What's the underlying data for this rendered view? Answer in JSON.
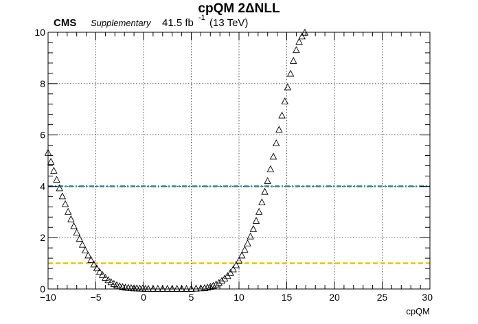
{
  "header": {
    "title": "cpQM 2ΔNLL",
    "experiment": "CMS",
    "status": "Supplementary",
    "lumi_value": "41.5 fb",
    "lumi_exponent": "-1",
    "energy": "(13 TeV)"
  },
  "chart_data": {
    "type": "scatter",
    "title": "cpQM 2ΔNLL",
    "xlabel": "cpQM",
    "ylabel": "",
    "xlim": [
      -10,
      30
    ],
    "ylim": [
      0,
      10
    ],
    "xticks": [
      -10,
      -5,
      0,
      5,
      10,
      15,
      20,
      25,
      30
    ],
    "yticks": [
      0,
      2,
      4,
      6,
      8,
      10
    ],
    "xtick_labels": [
      "−10",
      "−5",
      "0",
      "5",
      "10",
      "15",
      "20",
      "25",
      "30"
    ],
    "ytick_labels": [
      "0",
      "2",
      "4",
      "6",
      "8",
      "10"
    ],
    "grid": true,
    "marker": "open-triangle",
    "series": [
      {
        "x": [
          -10.0,
          -9.7,
          -9.4,
          -9.1,
          -8.8,
          -8.5,
          -8.2,
          -7.9,
          -7.6,
          -7.3,
          -7.0,
          -6.7,
          -6.4,
          -6.1,
          -5.8,
          -5.5,
          -5.2,
          -4.9,
          -4.6,
          -4.3,
          -4.0,
          -3.7,
          -3.4,
          -3.1,
          -2.8,
          -2.5,
          -2.2,
          -1.9,
          -1.6,
          -1.3,
          -1.0,
          -0.7,
          -0.4,
          -0.1,
          0.2,
          0.5,
          1.0,
          1.5,
          2.0,
          2.5,
          3.0,
          3.5,
          4.0,
          4.5,
          5.0,
          5.5,
          6.0,
          6.4,
          6.7,
          7.0,
          7.3,
          7.6,
          7.9,
          8.2,
          8.5,
          8.8,
          9.1,
          9.4,
          9.7,
          10.0,
          10.3,
          10.6,
          10.9,
          11.2,
          11.5,
          11.8,
          12.1,
          12.4,
          12.7,
          13.0,
          13.3,
          13.6,
          13.9,
          14.2,
          14.5,
          14.8,
          15.1,
          15.4,
          15.7,
          16.0,
          16.3,
          16.6,
          16.9
        ],
        "y": [
          5.3,
          4.95,
          4.6,
          4.25,
          3.92,
          3.6,
          3.3,
          3.0,
          2.71,
          2.44,
          2.19,
          1.95,
          1.72,
          1.5,
          1.3,
          1.12,
          0.95,
          0.8,
          0.66,
          0.54,
          0.43,
          0.34,
          0.26,
          0.19,
          0.14,
          0.1,
          0.07,
          0.05,
          0.04,
          0.03,
          0.02,
          0.02,
          0.01,
          0.01,
          0.0,
          0.0,
          0.0,
          0.0,
          0.0,
          0.0,
          0.0,
          0.0,
          0.0,
          0.0,
          0.0,
          0.01,
          0.02,
          0.03,
          0.05,
          0.08,
          0.12,
          0.17,
          0.23,
          0.31,
          0.4,
          0.5,
          0.62,
          0.76,
          0.92,
          1.1,
          1.3,
          1.52,
          1.77,
          2.04,
          2.33,
          2.65,
          3.0,
          3.37,
          3.78,
          4.2,
          4.66,
          5.15,
          5.67,
          6.2,
          6.75,
          7.3,
          7.85,
          8.38,
          8.88,
          9.3,
          9.62,
          9.83,
          9.98
        ]
      }
    ],
    "reference_lines": [
      {
        "y": 4,
        "color": "#2e8b8b",
        "style": "dash-dot"
      },
      {
        "y": 1,
        "color": "#e6c800",
        "style": "dashed"
      }
    ]
  }
}
